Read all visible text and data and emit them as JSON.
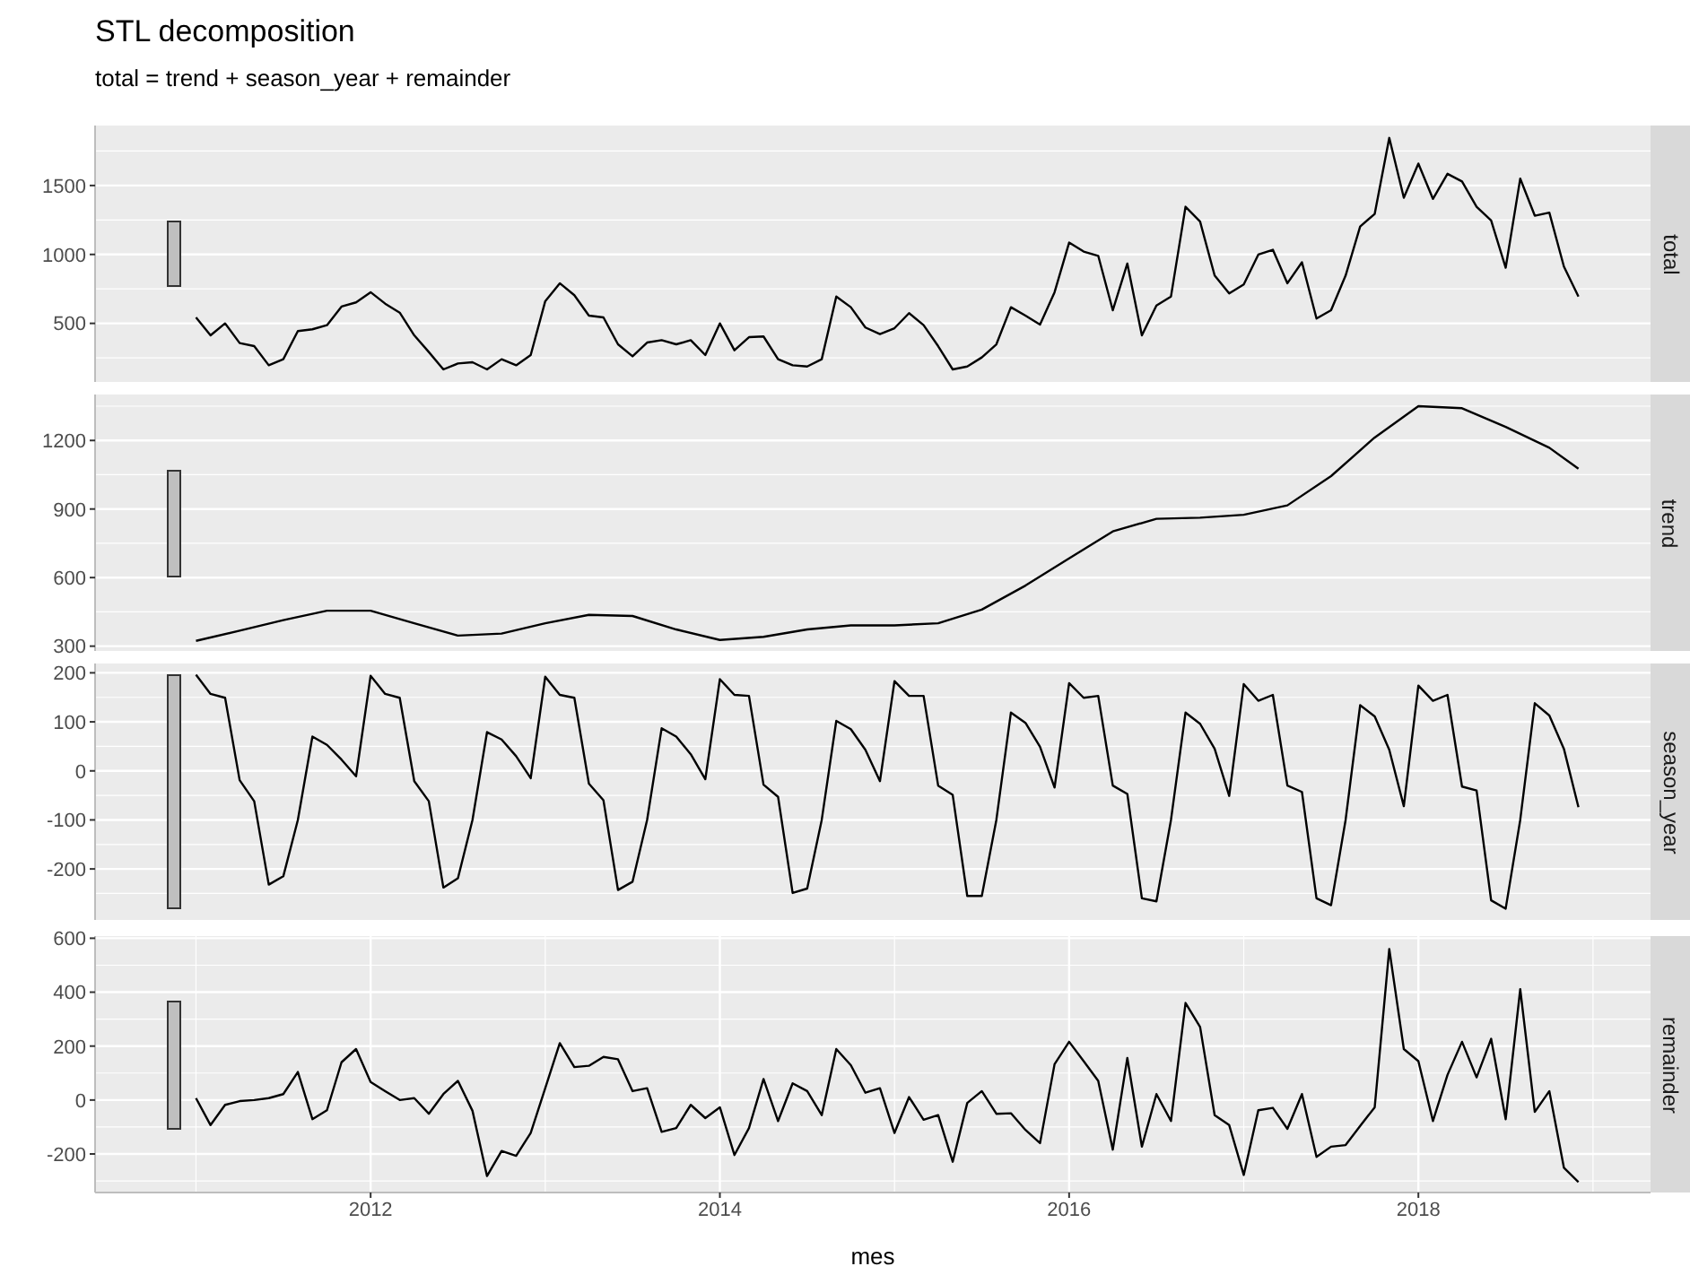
{
  "chart_data": [
    {
      "type": "line",
      "title": "STL decomposition",
      "subtitle": "total = trend + season_year + remainder",
      "x": [
        "2011-01",
        "2011-02",
        "2011-03",
        "2011-04",
        "2011-05",
        "2011-06",
        "2011-07",
        "2011-08",
        "2011-09",
        "2011-10",
        "2011-11",
        "2011-12",
        "2012-01",
        "2012-02",
        "2012-03",
        "2012-04",
        "2012-05",
        "2012-06",
        "2012-07",
        "2012-08",
        "2012-09",
        "2012-10",
        "2012-11",
        "2012-12",
        "2013-01",
        "2013-02",
        "2013-03",
        "2013-04",
        "2013-05",
        "2013-06",
        "2013-07",
        "2013-08",
        "2013-09",
        "2013-10",
        "2013-11",
        "2013-12",
        "2014-01",
        "2014-02",
        "2014-03",
        "2014-04",
        "2014-05",
        "2014-06",
        "2014-07",
        "2014-08",
        "2014-09",
        "2014-10",
        "2014-11",
        "2014-12",
        "2015-01",
        "2015-02",
        "2015-03",
        "2015-04",
        "2015-05",
        "2015-06",
        "2015-07",
        "2015-08",
        "2015-09",
        "2015-10",
        "2015-11",
        "2015-12",
        "2016-01",
        "2016-02",
        "2016-03",
        "2016-04",
        "2016-05",
        "2016-06",
        "2016-07",
        "2016-08",
        "2016-09",
        "2016-10",
        "2016-11",
        "2016-12",
        "2017-01",
        "2017-02",
        "2017-03",
        "2017-04",
        "2017-05",
        "2017-06",
        "2017-07",
        "2017-08",
        "2017-09",
        "2017-10",
        "2017-11",
        "2017-12",
        "2018-01",
        "2018-02",
        "2018-03",
        "2018-04",
        "2018-05",
        "2018-06",
        "2018-07",
        "2018-08",
        "2018-09",
        "2018-10",
        "2018-11",
        "2018-12"
      ],
      "series": [
        {
          "name": "total",
          "color": "#000000",
          "values": [
            543,
            413,
            500,
            357,
            335,
            196,
            240,
            444,
            457,
            487,
            622,
            652,
            726,
            643,
            578,
            413,
            292,
            166,
            209,
            218,
            166,
            240,
            196,
            270,
            661,
            791,
            704,
            556,
            543,
            348,
            261,
            361,
            378,
            348,
            378,
            270,
            500,
            305,
            400,
            405,
            240,
            196,
            187,
            240,
            695,
            617,
            470,
            422,
            465,
            574,
            487,
            335,
            166,
            187,
            253,
            348,
            617,
            556,
            491,
            726,
            1086,
            1021,
            990,
            595,
            934,
            413,
            630,
            695,
            1346,
            1238,
            847,
            717,
            782,
            999,
            1034,
            791,
            943,
            535,
            595,
            847,
            1203,
            1294,
            1845,
            1411,
            1659,
            1403,
            1585,
            1529,
            1346,
            1246,
            904,
            1550,
            1281,
            1303,
            912,
            695
          ]
        }
      ],
      "xlim": [
        "2010-06-03",
        "2019-04-30"
      ],
      "xticks": [
        "2012",
        "2014",
        "2016",
        "2018"
      ],
      "ylim": [
        75,
        1935
      ],
      "yticks": [
        500,
        1000,
        1500
      ],
      "grid": true,
      "tick_labels": "y"
    },
    {
      "type": "line",
      "x": [
        "2011-01",
        "2011-04",
        "2011-07",
        "2011-10",
        "2012-01",
        "2012-04",
        "2012-07",
        "2012-10",
        "2013-01",
        "2013-04",
        "2013-07",
        "2013-10",
        "2014-01",
        "2014-04",
        "2014-07",
        "2014-10",
        "2015-01",
        "2015-04",
        "2015-07",
        "2015-10",
        "2016-01",
        "2016-04",
        "2016-07",
        "2016-10",
        "2017-01",
        "2017-04",
        "2017-07",
        "2017-10",
        "2018-01",
        "2018-04",
        "2018-07",
        "2018-10",
        "2018-12"
      ],
      "series": [
        {
          "name": "trend",
          "color": "#000000",
          "values": [
            323,
            368,
            414,
            455,
            455,
            400,
            346,
            355,
            400,
            437,
            432,
            373,
            327,
            341,
            373,
            391,
            391,
            400,
            460,
            565,
            684,
            802,
            857,
            862,
            875,
            916,
            1044,
            1213,
            1350,
            1341,
            1259,
            1168,
            1076
          ]
        }
      ],
      "xlim": [
        "2010-06-03",
        "2019-04-30"
      ],
      "xticks": [
        "2012",
        "2014",
        "2016",
        "2018"
      ],
      "ylim": [
        279,
        1401
      ],
      "yticks": [
        300,
        600,
        900,
        1200
      ],
      "grid": true,
      "tick_labels": "y"
    },
    {
      "type": "line",
      "x": [
        "2011-01",
        "2011-02",
        "2011-03",
        "2011-04",
        "2011-05",
        "2011-06",
        "2011-07",
        "2011-08",
        "2011-09",
        "2011-10",
        "2011-11",
        "2011-12",
        "2012-01",
        "2012-02",
        "2012-03",
        "2012-04",
        "2012-05",
        "2012-06",
        "2012-07",
        "2012-08",
        "2012-09",
        "2012-10",
        "2012-11",
        "2012-12",
        "2013-01",
        "2013-02",
        "2013-03",
        "2013-04",
        "2013-05",
        "2013-06",
        "2013-07",
        "2013-08",
        "2013-09",
        "2013-10",
        "2013-11",
        "2013-12",
        "2014-01",
        "2014-02",
        "2014-03",
        "2014-04",
        "2014-05",
        "2014-06",
        "2014-07",
        "2014-08",
        "2014-09",
        "2014-10",
        "2014-11",
        "2014-12",
        "2015-01",
        "2015-02",
        "2015-03",
        "2015-04",
        "2015-05",
        "2015-06",
        "2015-07",
        "2015-08",
        "2015-09",
        "2015-10",
        "2015-11",
        "2015-12",
        "2016-01",
        "2016-02",
        "2016-03",
        "2016-04",
        "2016-05",
        "2016-06",
        "2016-07",
        "2016-08",
        "2016-09",
        "2016-10",
        "2016-11",
        "2016-12",
        "2017-01",
        "2017-02",
        "2017-03",
        "2017-04",
        "2017-05",
        "2017-06",
        "2017-07",
        "2017-08",
        "2017-09",
        "2017-10",
        "2017-11",
        "2017-12",
        "2018-01",
        "2018-02",
        "2018-03",
        "2018-04",
        "2018-05",
        "2018-06",
        "2018-07",
        "2018-08",
        "2018-09",
        "2018-10",
        "2018-11",
        "2018-12"
      ],
      "series": [
        {
          "name": "season_year",
          "color": "#000000",
          "values": [
            196,
            157,
            149,
            -19,
            -62,
            -232,
            -215,
            -100,
            70,
            53,
            23,
            -11,
            194,
            157,
            149,
            -21,
            -62,
            -238,
            -219,
            -100,
            79,
            64,
            30,
            -15,
            192,
            155,
            149,
            -26,
            -60,
            -243,
            -226,
            -100,
            87,
            70,
            34,
            -17,
            187,
            155,
            153,
            -28,
            -53,
            -249,
            -240,
            -100,
            102,
            85,
            43,
            -21,
            183,
            153,
            153,
            -30,
            -49,
            -255,
            -255,
            -100,
            119,
            98,
            49,
            -34,
            179,
            149,
            153,
            -30,
            -47,
            -260,
            -266,
            -100,
            119,
            96,
            45,
            -51,
            177,
            143,
            155,
            -30,
            -43,
            -260,
            -274,
            -100,
            134,
            111,
            43,
            -72,
            174,
            143,
            155,
            -32,
            -40,
            -264,
            -281,
            -100,
            138,
            113,
            45,
            -74
          ]
        }
      ],
      "xlim": [
        "2010-06-03",
        "2019-04-30"
      ],
      "xticks": [
        "2012",
        "2014",
        "2016",
        "2018"
      ],
      "ylim": [
        -304,
        219
      ],
      "yticks": [
        -200,
        -100,
        0,
        100,
        200
      ],
      "grid": true,
      "tick_labels": "y"
    },
    {
      "type": "line",
      "xlabel": "mes",
      "x": [
        "2011-01",
        "2011-02",
        "2011-03",
        "2011-04",
        "2011-05",
        "2011-06",
        "2011-07",
        "2011-08",
        "2011-09",
        "2011-10",
        "2011-11",
        "2011-12",
        "2012-01",
        "2012-02",
        "2012-03",
        "2012-04",
        "2012-05",
        "2012-06",
        "2012-07",
        "2012-08",
        "2012-09",
        "2012-10",
        "2012-11",
        "2012-12",
        "2013-01",
        "2013-02",
        "2013-03",
        "2013-04",
        "2013-05",
        "2013-06",
        "2013-07",
        "2013-08",
        "2013-09",
        "2013-10",
        "2013-11",
        "2013-12",
        "2014-01",
        "2014-02",
        "2014-03",
        "2014-04",
        "2014-05",
        "2014-06",
        "2014-07",
        "2014-08",
        "2014-09",
        "2014-10",
        "2014-11",
        "2014-12",
        "2015-01",
        "2015-02",
        "2015-03",
        "2015-04",
        "2015-05",
        "2015-06",
        "2015-07",
        "2015-08",
        "2015-09",
        "2015-10",
        "2015-11",
        "2015-12",
        "2016-01",
        "2016-02",
        "2016-03",
        "2016-04",
        "2016-05",
        "2016-06",
        "2016-07",
        "2016-08",
        "2016-09",
        "2016-10",
        "2016-11",
        "2016-12",
        "2017-01",
        "2017-02",
        "2017-03",
        "2017-04",
        "2017-05",
        "2017-06",
        "2017-07",
        "2017-08",
        "2017-09",
        "2017-10",
        "2017-11",
        "2017-12",
        "2018-01",
        "2018-02",
        "2018-03",
        "2018-04",
        "2018-05",
        "2018-06",
        "2018-07",
        "2018-08",
        "2018-09",
        "2018-10",
        "2018-11",
        "2018-12"
      ],
      "series": [
        {
          "name": "remainder",
          "color": "#000000",
          "values": [
            7,
            -93,
            -18,
            -4,
            0,
            7,
            22,
            104,
            -71,
            -38,
            140,
            189,
            67,
            33,
            0,
            7,
            -51,
            22,
            71,
            -40,
            -282,
            -189,
            -207,
            -122,
            44,
            211,
            122,
            127,
            160,
            151,
            33,
            44,
            -118,
            -104,
            -18,
            -67,
            -27,
            -204,
            -104,
            78,
            -78,
            62,
            33,
            -56,
            189,
            129,
            27,
            44,
            -122,
            11,
            -73,
            -56,
            -229,
            -11,
            33,
            -51,
            -49,
            -111,
            -160,
            133,
            216,
            144,
            71,
            -184,
            156,
            -173,
            22,
            -78,
            360,
            271,
            -56,
            -93,
            -278,
            -38,
            -29,
            -107,
            22,
            -211,
            -173,
            -167,
            -96,
            -27,
            560,
            189,
            144,
            -78,
            93,
            216,
            84,
            227,
            -71,
            411,
            -44,
            33,
            -251,
            -304
          ]
        }
      ],
      "xlim": [
        "2010-06-03",
        "2019-04-30"
      ],
      "xticks": [
        "2012",
        "2014",
        "2016",
        "2018"
      ],
      "ylim": [
        -343,
        608
      ],
      "yticks": [
        -200,
        0,
        200,
        400,
        600
      ],
      "grid": true
    }
  ]
}
